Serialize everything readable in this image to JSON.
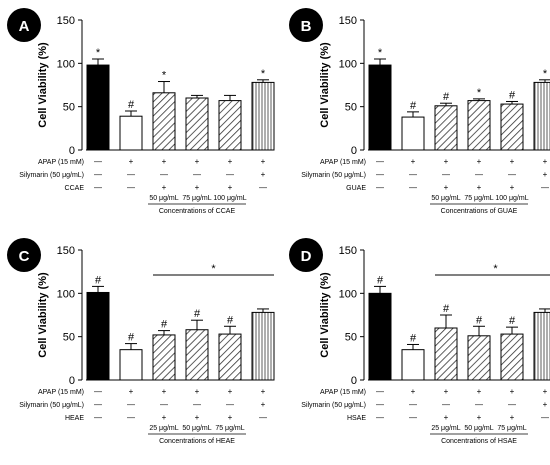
{
  "chart_data": [
    {
      "type": "bar",
      "panel": "A",
      "title": "",
      "ylabel": "Cell Viability (%)",
      "ylim": [
        0,
        150
      ],
      "yticks": [
        0,
        50,
        100,
        150
      ],
      "categories": [
        "Control",
        "APAP",
        "CCAE 50 μg/mL",
        "CCAE 75 μg/mL",
        "CCAE 100 μg/mL",
        "Silymarin"
      ],
      "values": [
        98,
        39,
        66,
        60,
        57,
        78
      ],
      "errors": [
        7,
        6,
        13,
        3,
        6,
        3
      ],
      "annotations": [
        "*",
        "#",
        "*",
        "",
        "",
        "*"
      ],
      "fills": [
        "solid",
        "white",
        "hatch",
        "hatch",
        "hatch",
        "vlines"
      ],
      "bracket": null,
      "rows": [
        {
          "label": "APAP (15 mM)",
          "cells": [
            "—",
            "+",
            "+",
            "+",
            "+",
            "+"
          ]
        },
        {
          "label": "Silymarin (50 μg/mL)",
          "cells": [
            "—",
            "—",
            "—",
            "—",
            "—",
            "+"
          ]
        },
        {
          "label": "CCAE",
          "cells": [
            "—",
            "—",
            "+",
            "+",
            "+",
            "—"
          ]
        }
      ],
      "concentrations": [
        "50 μg/mL",
        "75 μg/mL",
        "100 μg/mL"
      ],
      "concentration_label": "Concentrations of CCAE"
    },
    {
      "type": "bar",
      "panel": "B",
      "title": "",
      "ylabel": "Cell Viability (%)",
      "ylim": [
        0,
        150
      ],
      "yticks": [
        0,
        50,
        100,
        150
      ],
      "categories": [
        "Control",
        "APAP",
        "GUAE 50 μg/mL",
        "GUAE 75 μg/mL",
        "GUAE 100 μg/mL",
        "Silymarin"
      ],
      "values": [
        98,
        38,
        51,
        57,
        53,
        78
      ],
      "errors": [
        7,
        6,
        3,
        2,
        3,
        3
      ],
      "annotations": [
        "*",
        "#",
        "#",
        "*",
        "#",
        "*"
      ],
      "fills": [
        "solid",
        "white",
        "hatch",
        "hatch",
        "hatch",
        "vlines"
      ],
      "bracket": null,
      "rows": [
        {
          "label": "APAP (15 mM)",
          "cells": [
            "—",
            "+",
            "+",
            "+",
            "+",
            "+"
          ]
        },
        {
          "label": "Silymarin (50 μg/mL)",
          "cells": [
            "—",
            "—",
            "—",
            "—",
            "—",
            "+"
          ]
        },
        {
          "label": "GUAE",
          "cells": [
            "—",
            "—",
            "+",
            "+",
            "+",
            "—"
          ]
        }
      ],
      "concentrations": [
        "50 μg/mL",
        "75 μg/mL",
        "100 μg/mL"
      ],
      "concentration_label": "Concentrations of GUAE"
    },
    {
      "type": "bar",
      "panel": "C",
      "title": "",
      "ylabel": "Cell Viability (%)",
      "ylim": [
        0,
        150
      ],
      "yticks": [
        0,
        50,
        100,
        150
      ],
      "categories": [
        "Control",
        "APAP",
        "HEAE 25 μg/mL",
        "HEAE 50 μg/mL",
        "HEAE 75 μg/mL",
        "Silymarin"
      ],
      "values": [
        101,
        35,
        52,
        58,
        53,
        78
      ],
      "errors": [
        7,
        7,
        5,
        11,
        9,
        4
      ],
      "annotations": [
        "#",
        "#",
        "#",
        "#",
        "#",
        ""
      ],
      "fills": [
        "solid",
        "white",
        "hatch",
        "hatch",
        "hatch",
        "vlines"
      ],
      "bracket": {
        "from": 2,
        "to": 5,
        "label": "*"
      },
      "rows": [
        {
          "label": "APAP (15 mM)",
          "cells": [
            "—",
            "+",
            "+",
            "+",
            "+",
            "+"
          ]
        },
        {
          "label": "Silymarin (50 μg/mL)",
          "cells": [
            "—",
            "—",
            "—",
            "—",
            "—",
            "+"
          ]
        },
        {
          "label": "HEAE",
          "cells": [
            "—",
            "—",
            "+",
            "+",
            "+",
            "—"
          ]
        }
      ],
      "concentrations": [
        "25 μg/mL",
        "50 μg/mL",
        "75 μg/mL"
      ],
      "concentration_label": "Concentrations of HEAE"
    },
    {
      "type": "bar",
      "panel": "D",
      "title": "",
      "ylabel": "Cell Viability (%)",
      "ylim": [
        0,
        150
      ],
      "yticks": [
        0,
        50,
        100,
        150
      ],
      "categories": [
        "Control",
        "APAP",
        "HSAE 25 μg/mL",
        "HSAE 50 μg/mL",
        "HSAE 75 μg/mL",
        "Silymarin"
      ],
      "values": [
        100,
        35,
        60,
        51,
        53,
        78
      ],
      "errors": [
        8,
        6,
        15,
        11,
        8,
        4
      ],
      "annotations": [
        "#",
        "#",
        "#",
        "#",
        "#",
        ""
      ],
      "fills": [
        "solid",
        "white",
        "hatch",
        "hatch",
        "hatch",
        "vlines"
      ],
      "bracket": {
        "from": 2,
        "to": 5,
        "label": "*"
      },
      "rows": [
        {
          "label": "APAP (15 mM)",
          "cells": [
            "—",
            "+",
            "+",
            "+",
            "+",
            "+"
          ]
        },
        {
          "label": "Silymarin (50 μg/mL)",
          "cells": [
            "—",
            "—",
            "—",
            "—",
            "—",
            "+"
          ]
        },
        {
          "label": "HSAE",
          "cells": [
            "—",
            "—",
            "+",
            "+",
            "+",
            "—"
          ]
        }
      ],
      "concentrations": [
        "25 μg/mL",
        "50 μg/mL",
        "75 μg/mL"
      ],
      "concentration_label": "Concentrations of HSAE"
    }
  ]
}
